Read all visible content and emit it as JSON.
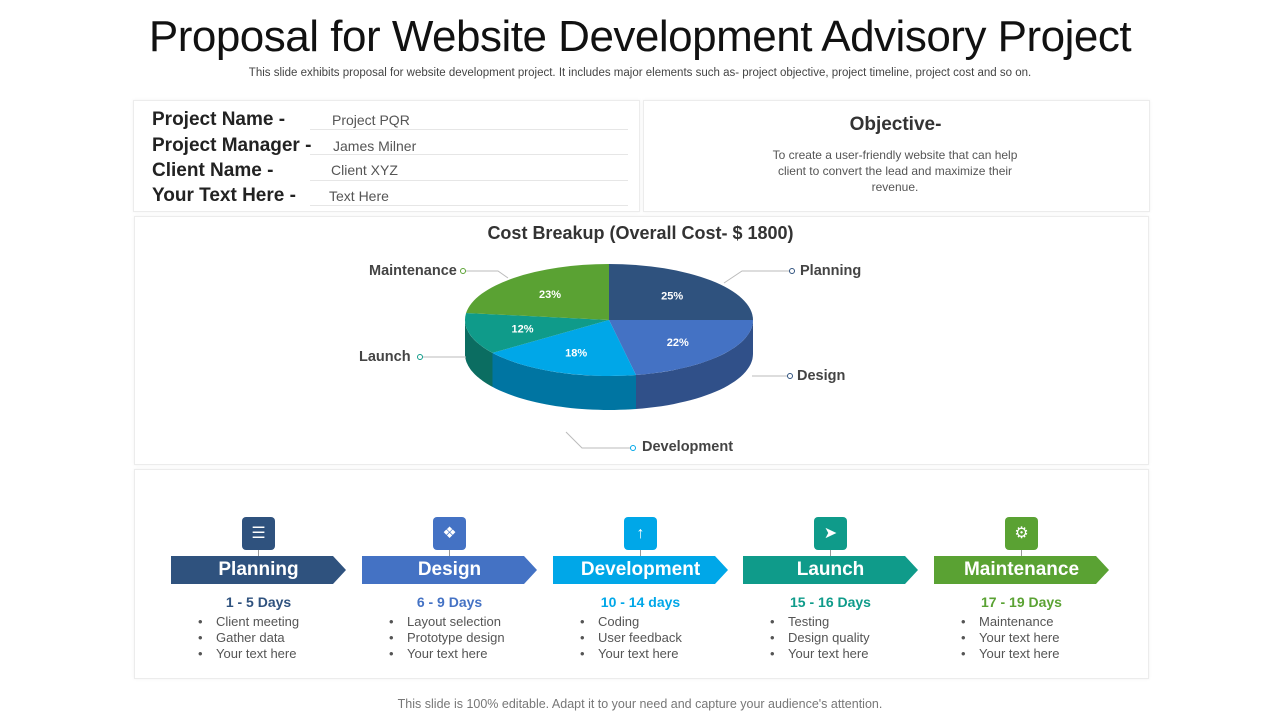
{
  "header": {
    "title": "Proposal for Website Development Advisory Project",
    "subtitle": "This slide exhibits proposal for website development project. It includes major elements such as- project objective, project timeline, project cost and so on."
  },
  "project_info": [
    {
      "label": "Project Name -",
      "value": "Project PQR"
    },
    {
      "label": "Project Manager -",
      "value": "James Milner"
    },
    {
      "label": "Client Name -",
      "value": "Client XYZ"
    },
    {
      "label": "Your Text Here -",
      "value": "Text Here"
    }
  ],
  "objective": {
    "title": "Objective-",
    "text": "To create a user-friendly website that can help client to convert the lead and maximize their revenue."
  },
  "chart_data": {
    "type": "pie",
    "title": "Cost Breakup (Overall Cost- $ 1800)",
    "categories": [
      "Planning",
      "Design",
      "Development",
      "Launch",
      "Maintenance"
    ],
    "values": [
      25,
      22,
      18,
      12,
      23
    ],
    "value_labels": [
      "25%",
      "22%",
      "18%",
      "12%",
      "23%"
    ],
    "colors": [
      "#2f527e",
      "#4472c4",
      "#00a7e8",
      "#0f9b8a",
      "#5aa233"
    ]
  },
  "stages": [
    {
      "name": "Planning",
      "days": "1 - 5 Days",
      "color": "#2f527e",
      "icon": "clipboard-icon",
      "items": [
        "Client meeting",
        "Gather data",
        "Your text here"
      ]
    },
    {
      "name": "Design",
      "days": "6 - 9 Days",
      "color": "#4472c4",
      "icon": "network-icon",
      "items": [
        "Layout selection",
        "Prototype design",
        "Your text here"
      ]
    },
    {
      "name": "Development",
      "days": "10 - 14 days",
      "color": "#00a7e8",
      "icon": "growth-chart-icon",
      "items": [
        "Coding",
        "User feedback",
        "Your text here"
      ]
    },
    {
      "name": "Launch",
      "days": "15 - 16 Days",
      "color": "#0f9b8a",
      "icon": "rocket-icon",
      "items": [
        "Testing",
        "Design quality",
        "Your text here"
      ]
    },
    {
      "name": "Maintenance",
      "days": "17 - 19 Days",
      "color": "#5aa233",
      "icon": "gear-icon",
      "items": [
        "Maintenance",
        "Your text here",
        "Your text here"
      ]
    }
  ],
  "footer": {
    "text": "This slide is 100% editable. Adapt it to your need and capture your audience's attention."
  }
}
